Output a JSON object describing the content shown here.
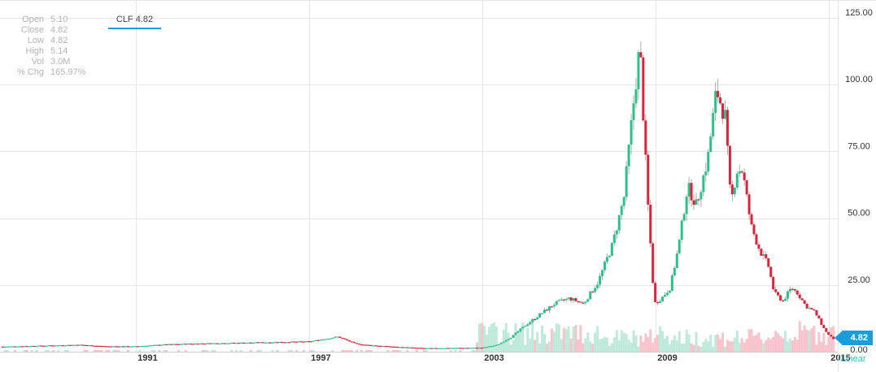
{
  "info": {
    "rows": [
      {
        "label": "Open",
        "value": "5.10"
      },
      {
        "label": "Close",
        "value": "4.82"
      },
      {
        "label": "Low",
        "value": "4.82"
      },
      {
        "label": "High",
        "value": "5.14"
      },
      {
        "label": "Vol",
        "value": "3.0M"
      },
      {
        "label": "% Chg",
        "value": "165.97%"
      }
    ]
  },
  "legend": {
    "label": "CLF 4.82"
  },
  "last_price": {
    "label": "4.82"
  },
  "scale": {
    "label": "Linear"
  },
  "colors": {
    "up": "#2ec08b",
    "down": "#d9243c",
    "vol_up": "#bfeadb",
    "vol_down": "#f7c4cb",
    "accent": "#1a9edb",
    "grid": "#e6e6e6"
  },
  "chart_data": {
    "type": "candlestick",
    "ticker": "CLF",
    "y_ticks": [
      "125.00",
      "100.00",
      "75.00",
      "50.00",
      "25.00",
      "0.00"
    ],
    "ylim": [
      0,
      125
    ],
    "xlim": [
      1986.3,
      2015.3
    ],
    "x_ticks": [
      "1991",
      "1997",
      "2003",
      "2009",
      "2015"
    ],
    "grid": true,
    "series": [
      {
        "values": [
          [
            1986.4,
            1.9
          ],
          [
            1988,
            2.3
          ],
          [
            1989,
            2.6
          ],
          [
            1990,
            2.0
          ],
          [
            1991,
            2.0
          ],
          [
            1992,
            2.7
          ],
          [
            1993,
            3.0
          ],
          [
            1994,
            3.2
          ],
          [
            1995,
            3.4
          ],
          [
            1996,
            3.6
          ],
          [
            1997,
            3.8
          ],
          [
            1998,
            5.6
          ],
          [
            1998.6,
            3.0
          ],
          [
            1999,
            2.5
          ],
          [
            2000,
            1.8
          ],
          [
            2001,
            1.3
          ],
          [
            2002,
            1.4
          ],
          [
            2003,
            1.5
          ],
          [
            2003.5,
            2.5
          ],
          [
            2004,
            5.5
          ],
          [
            2004.5,
            10.0
          ],
          [
            2005,
            14.0
          ],
          [
            2005.5,
            18.0
          ],
          [
            2006,
            20.0
          ],
          [
            2006.5,
            18.0
          ],
          [
            2007,
            26.0
          ],
          [
            2007.5,
            40.0
          ],
          [
            2007.9,
            58.0
          ],
          [
            2008.2,
            90.0
          ],
          [
            2008.45,
            115.0
          ],
          [
            2008.7,
            60.0
          ],
          [
            2008.95,
            18.0
          ],
          [
            2009.2,
            20.0
          ],
          [
            2009.5,
            24.0
          ],
          [
            2009.8,
            40.0
          ],
          [
            2010.1,
            62.0
          ],
          [
            2010.4,
            55.0
          ],
          [
            2010.8,
            72.0
          ],
          [
            2011.1,
            98.0
          ],
          [
            2011.4,
            88.0
          ],
          [
            2011.6,
            55.0
          ],
          [
            2011.8,
            68.0
          ],
          [
            2012.0,
            68.0
          ],
          [
            2012.3,
            47.0
          ],
          [
            2012.6,
            38.0
          ],
          [
            2012.9,
            32.0
          ],
          [
            2013.1,
            22.0
          ],
          [
            2013.4,
            19.0
          ],
          [
            2013.7,
            24.0
          ],
          [
            2013.9,
            22.0
          ],
          [
            2014.2,
            17.0
          ],
          [
            2014.5,
            15.0
          ],
          [
            2014.8,
            9.0
          ],
          [
            2015.0,
            6.0
          ],
          [
            2015.15,
            4.82
          ]
        ]
      }
    ],
    "volume_range": [
      0,
      30
    ]
  }
}
